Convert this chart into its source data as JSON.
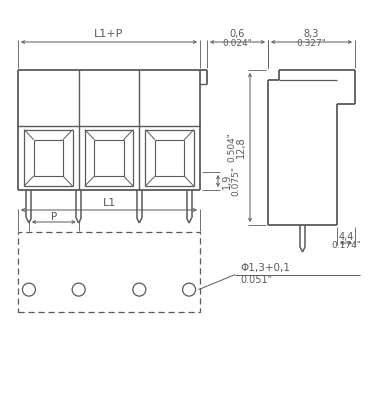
{
  "bg_color": "#ffffff",
  "line_color": "#5a5a5a",
  "dim_color": "#5a5a5a",
  "figsize": [
    3.9,
    4.0
  ],
  "dpi": 100,
  "annotations": {
    "L1_P": "L1+P",
    "dim_06_mm": "0,6",
    "dim_06_in": "0.024\"",
    "dim_83_mm": "8,3",
    "dim_83_in": "0.327\"",
    "dim_19_mm": "1,9",
    "dim_19_in": "0.075\"",
    "dim_128_mm": "12,8",
    "dim_128_in": "0.504\"",
    "dim_44_mm": "4,4",
    "dim_44_in": "0.174\"",
    "L1": "L1",
    "P": "P",
    "phi_mm": "Φ1,3+0,1",
    "phi_in": "0.051\""
  }
}
